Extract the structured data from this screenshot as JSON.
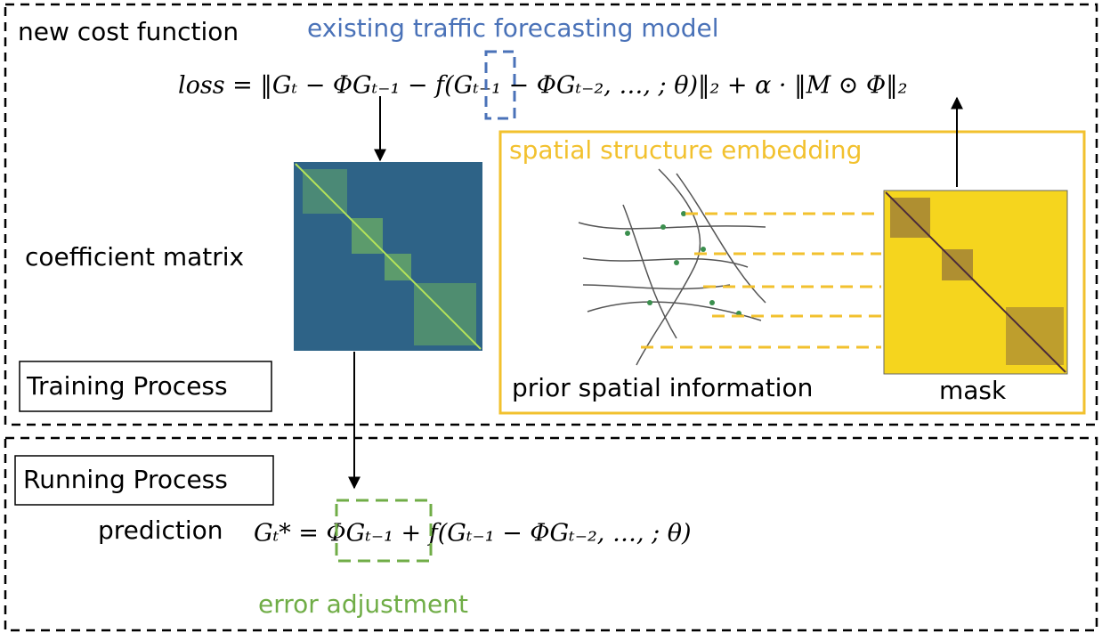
{
  "training": {
    "title": "new cost function",
    "model_label": "existing traffic forecasting model",
    "loss_equation": "loss = ‖Gₜ − ΦGₜ₋₁ − f(Gₜ₋₁ − ΦGₜ₋₂, …, ; θ)‖₂ + α · ‖M ⊙ Φ‖₂",
    "coefficient_label": "coefficient matrix",
    "process_label": "Training Process"
  },
  "embedding": {
    "title": "spatial structure embedding",
    "map_label": "prior spatial information",
    "mask_label": "mask"
  },
  "running": {
    "process_label": "Running Process",
    "prediction_label": "prediction",
    "prediction_equation": "Gₜ* = ΦGₜ₋₁ + f(Gₜ₋₁ − ΦGₜ₋₂, …, ; θ)",
    "adjustment_label": "error adjustment"
  }
}
